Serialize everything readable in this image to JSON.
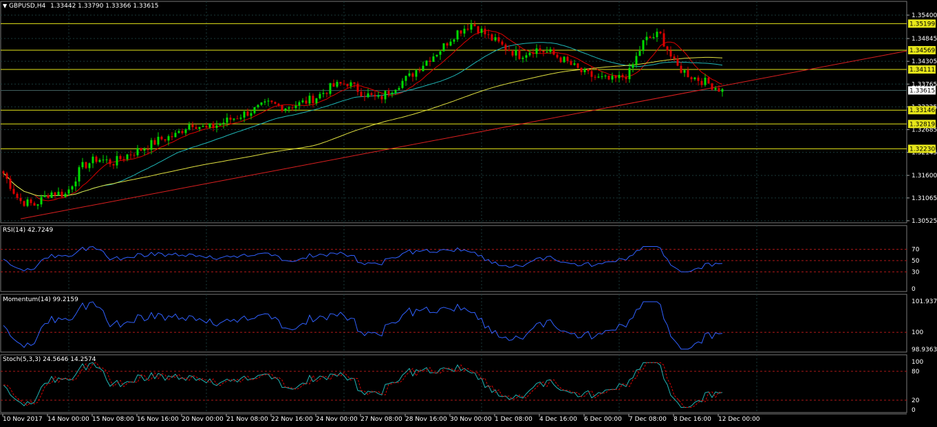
{
  "header": {
    "menu_arrow": "triangle-down-icon",
    "symbol": "GBPUSD,H4",
    "ohlc": "1.33442 1.33790 1.33366 1.33615"
  },
  "colors": {
    "background": "#000000",
    "grid": "#1a3a3a",
    "bull": "#00dd00",
    "bear": "#dd0000",
    "ma_fast": "#dd0000",
    "ma_mid": "#1fb6b6",
    "ma_slow": "#e0e040",
    "hline": "#e6e61a",
    "trendline": "#dd2020",
    "indicator": "#3060ff",
    "level_dash": "#b01818"
  },
  "price_axis": {
    "ticks": [
      "1.35400",
      "1.34845",
      "1.34305",
      "1.33765",
      "1.33225",
      "1.32685",
      "1.32145",
      "1.31600",
      "1.31065",
      "1.30525"
    ],
    "current_price": "1.33615",
    "levels": [
      "1.35199",
      "1.34569",
      "1.34111",
      "1.33146",
      "1.32819",
      "1.32230"
    ]
  },
  "indicators": {
    "rsi": {
      "label": "RSI(14) 42.7249",
      "ticks": [
        "70",
        "50",
        "30",
        "0"
      ],
      "top_tick": "70",
      "levels": [
        70,
        50,
        30
      ]
    },
    "momentum": {
      "label": "Momentum(14) 99.2159",
      "ticks": [
        "101.9375",
        "100",
        "98.9363"
      ]
    },
    "stoch": {
      "label": "Stoch(5,3,3) 24.5646 14.2574",
      "ticks": [
        "100",
        "80",
        "20",
        "0"
      ]
    }
  },
  "time_axis": [
    "10 Nov 2017",
    "14 Nov 00:00",
    "15 Nov 08:00",
    "16 Nov 16:00",
    "20 Nov 00:00",
    "21 Nov 08:00",
    "22 Nov 16:00",
    "24 Nov 00:00",
    "27 Nov 08:00",
    "28 Nov 16:00",
    "30 Nov 00:00",
    "1 Dec 08:00",
    "4 Dec 16:00",
    "6 Dec 00:00",
    "7 Dec 08:00",
    "8 Dec 16:00",
    "12 Dec 00:00"
  ],
  "chart_data": {
    "type": "candlestick",
    "symbol": "GBPUSD",
    "timeframe": "H4",
    "ylim": [
      1.30525,
      1.354
    ],
    "close_path": [
      1.3165,
      1.31,
      1.309,
      1.312,
      1.3115,
      1.318,
      1.32,
      1.319,
      1.321,
      1.3225,
      1.3245,
      1.3255,
      1.3285,
      1.327,
      1.3285,
      1.33,
      1.3315,
      1.333,
      1.3322,
      1.333,
      1.3345,
      1.337,
      1.338,
      1.3355,
      1.334,
      1.337,
      1.3395,
      1.343,
      1.346,
      1.35,
      1.352,
      1.349,
      1.3465,
      1.3445,
      1.346,
      1.345,
      1.343,
      1.3405,
      1.339,
      1.3385,
      1.34,
      1.348,
      1.3495,
      1.342,
      1.3395,
      1.338,
      1.3361
    ]
  }
}
